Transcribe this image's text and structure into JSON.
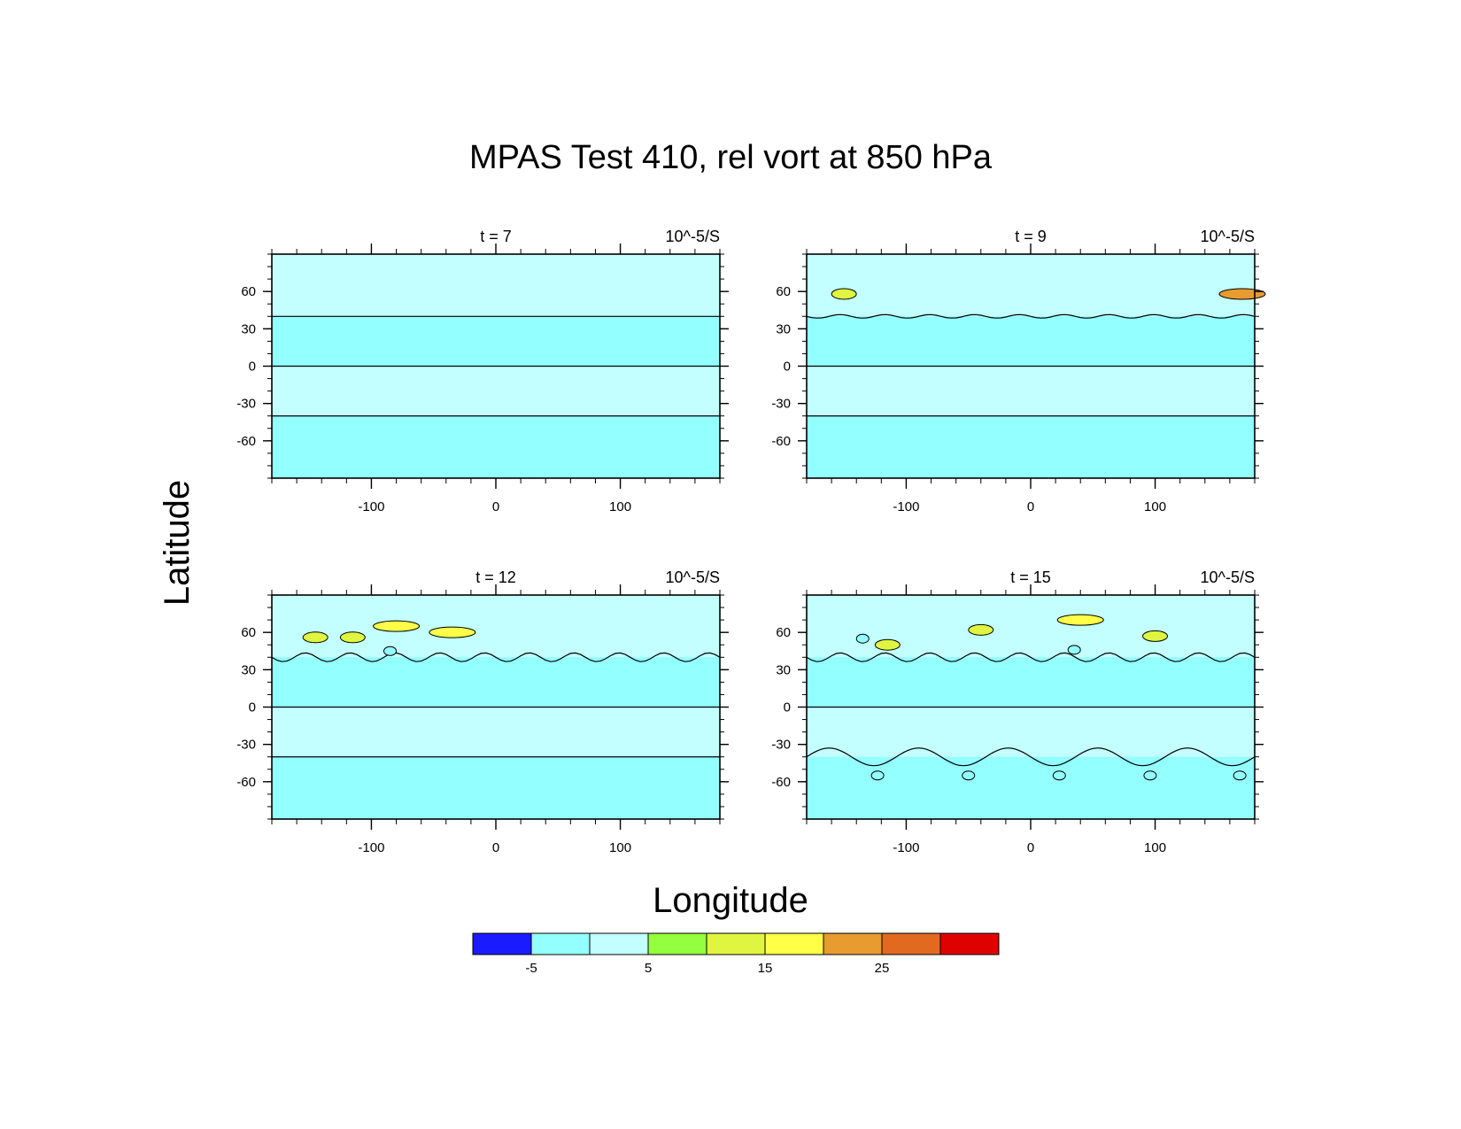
{
  "figure": {
    "title": "MPAS Test 410, rel vort at 850 hPa",
    "xlabel": "Longitude",
    "ylabel": "Latitude"
  },
  "colors": {
    "band_blue": "#1b1bff",
    "band_cyan": "#93ffff",
    "band_light_cyan": "#c3ffff",
    "band_green": "#93ff3f",
    "band_yellow_green": "#dff53f",
    "band_yellow": "#ffff47",
    "band_orange": "#e89b2f",
    "band_dark_orange": "#e26920",
    "band_red": "#df0000"
  },
  "chart_data": [
    {
      "type": "heatmap",
      "left_label": "t = 7",
      "units_label": "10^-5/S",
      "xlim": [
        -180,
        180
      ],
      "ylim": [
        -90,
        90
      ],
      "x_ticks": [
        -100,
        0,
        100
      ],
      "y_ticks": [
        60,
        30,
        0,
        -30,
        -60
      ],
      "y_tick_labels": [
        "60",
        "30",
        "0",
        "-30",
        "-60"
      ],
      "x_tick_labels": [
        "-100",
        "0",
        "100"
      ],
      "contours": [
        {
          "lat": 0
        },
        {
          "lat": -40
        },
        {
          "lat": 40,
          "note": "wavy contour near 40N with small waves east of 100E"
        }
      ],
      "features": []
    },
    {
      "type": "heatmap",
      "left_label": "t = 9",
      "units_label": "10^-5/S",
      "xlim": [
        -180,
        180
      ],
      "ylim": [
        -90,
        90
      ],
      "x_ticks": [
        -100,
        0,
        100
      ],
      "y_ticks": [
        60,
        30,
        0,
        -30,
        -60
      ],
      "y_tick_labels": [
        "60",
        "30",
        "0",
        "-30",
        "-60"
      ],
      "x_tick_labels": [
        "-100",
        "0",
        "100"
      ],
      "contours": [
        {
          "lat": 0
        },
        {
          "lat": -40
        },
        {
          "lat": 40
        }
      ],
      "features": [
        {
          "lon": -150,
          "lat": 58,
          "level": 10
        },
        {
          "lon": 170,
          "lat": 58,
          "level": 20
        }
      ]
    },
    {
      "type": "heatmap",
      "left_label": "t = 12",
      "units_label": "10^-5/S",
      "xlim": [
        -180,
        180
      ],
      "ylim": [
        -90,
        90
      ],
      "x_ticks": [
        -100,
        0,
        100
      ],
      "y_ticks": [
        60,
        30,
        0,
        -30,
        -60
      ],
      "y_tick_labels": [
        "60",
        "30",
        "0",
        "-30",
        "-60"
      ],
      "x_tick_labels": [
        "-100",
        "0",
        "100"
      ],
      "contours": [
        {
          "lat": 0
        },
        {
          "lat": -40
        },
        {
          "lat": 40
        }
      ],
      "features": [
        {
          "lon": -80,
          "lat": 65,
          "level": 15
        },
        {
          "lon": -35,
          "lat": 60,
          "level": 15
        },
        {
          "lon": -115,
          "lat": 56,
          "level": 10
        },
        {
          "lon": -145,
          "lat": 56,
          "level": 10
        },
        {
          "lon": -85,
          "lat": 45,
          "level": -5
        }
      ]
    },
    {
      "type": "heatmap",
      "left_label": "t = 15",
      "units_label": "10^-5/S",
      "xlim": [
        -180,
        180
      ],
      "ylim": [
        -90,
        90
      ],
      "x_ticks": [
        -100,
        0,
        100
      ],
      "y_ticks": [
        60,
        30,
        0,
        -30,
        -60
      ],
      "y_tick_labels": [
        "60",
        "30",
        "0",
        "-30",
        "-60"
      ],
      "x_tick_labels": [
        "-100",
        "0",
        "100"
      ],
      "contours": [
        {
          "lat": 0
        },
        {
          "lat": 40
        },
        {
          "lat": -40
        }
      ],
      "features": [
        {
          "lon": -40,
          "lat": 62,
          "level": 10
        },
        {
          "lon": 40,
          "lat": 70,
          "level": 15
        },
        {
          "lon": 100,
          "lat": 57,
          "level": 10
        },
        {
          "lon": -115,
          "lat": 50,
          "level": 10
        },
        {
          "lon": -135,
          "lat": 55,
          "level": -5
        },
        {
          "lon": 35,
          "lat": 46,
          "level": -5
        },
        {
          "lon": -123,
          "lat": -55,
          "level": -5
        },
        {
          "lon": -50,
          "lat": -55,
          "level": -5
        },
        {
          "lon": 23,
          "lat": -55,
          "level": -5
        },
        {
          "lon": 96,
          "lat": -55,
          "level": -5
        },
        {
          "lon": 168,
          "lat": -55,
          "level": -5
        }
      ]
    }
  ],
  "colorbar": {
    "levels": [
      -10,
      -5,
      0,
      5,
      10,
      15,
      20,
      25,
      30,
      35
    ],
    "tick_labels": [
      "-5",
      "5",
      "15",
      "25"
    ],
    "tick_values": [
      -5,
      5,
      15,
      25
    ],
    "band_colors": [
      "#1b1bff",
      "#93ffff",
      "#c3ffff",
      "#93ff3f",
      "#dff53f",
      "#ffff47",
      "#e89b2f",
      "#e26920",
      "#df0000"
    ]
  }
}
